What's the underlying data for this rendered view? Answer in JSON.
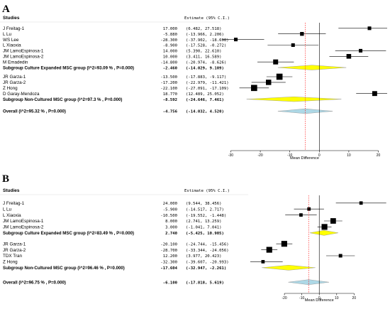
{
  "chart_data": [
    {
      "type": "forest",
      "panel": "A",
      "header": {
        "studies": "Studies",
        "estimate": "Estimate (95% C.I.)"
      },
      "xlabel": "Mean Difference",
      "xticks": [
        -30,
        -20,
        -10,
        0,
        10,
        20
      ],
      "xlim": [
        -33,
        23
      ],
      "null_line": 0,
      "overall_line": -4.756,
      "groups": [
        {
          "studies": [
            {
              "name": "J Freitag-1",
              "estimate": 17.0,
              "lower": 6.482,
              "upper": 27.518,
              "text": "17.000",
              "ci_text": "(6.482,  27.518)"
            },
            {
              "name": "L Lu",
              "estimate": -5.88,
              "lower": -13.966,
              "upper": 2.206,
              "text": "-5.880",
              "ci_text": "(-13.966,  2.206)"
            },
            {
              "name": "WS Lee",
              "estimate": -28.3,
              "lower": -37.902,
              "upper": -18.698,
              "text": "-28.300",
              "ci_text": "(-37.902, -18.698)"
            },
            {
              "name": "L Xiaoxia",
              "estimate": -8.9,
              "lower": -17.528,
              "upper": -0.272,
              "text": "-8.900",
              "ci_text": "(-17.528,  -0.272)"
            },
            {
              "name": "JM LamoEspinosa-1",
              "estimate": 14.0,
              "lower": 5.39,
              "upper": 22.61,
              "text": "14.000",
              "ci_text": "(5.390,  22.610)"
            },
            {
              "name": "JM LamoEspinosa-2",
              "estimate": 10.0,
              "lower": 3.411,
              "upper": 16.589,
              "text": "10.000",
              "ci_text": "(3.411,  16.589)"
            },
            {
              "name": "M Emadedin",
              "estimate": -14.8,
              "lower": -20.974,
              "upper": -8.626,
              "text": "-14.800",
              "ci_text": "(-20.974,  -8.626)"
            }
          ],
          "subgroup": {
            "label": "Subgroup Culture Expanded MSC group (I^2=93.09 % , P=0.000)",
            "estimate": -2.46,
            "lower": -14.029,
            "upper": 9.109,
            "text": "-2.460",
            "ci_text": "(-14.029,  9.109)"
          }
        },
        {
          "studies": [
            {
              "name": "JR Garza-1",
              "estimate": -13.5,
              "lower": -17.883,
              "upper": -9.117,
              "text": "-13.500",
              "ci_text": "(-17.883,  -9.117)"
            },
            {
              "name": "JR Garza-2",
              "estimate": -17.2,
              "lower": -22.979,
              "upper": -11.421,
              "text": "-17.200",
              "ci_text": "(-22.979, -11.421)"
            },
            {
              "name": "Z Hong",
              "estimate": -22.1,
              "lower": -27.091,
              "upper": -17.109,
              "text": "-22.100",
              "ci_text": "(-27.091, -17.109)"
            },
            {
              "name": "D Garay-Mendoza",
              "estimate": 18.77,
              "lower": 12.489,
              "upper": 25.052,
              "text": "18.770",
              "ci_text": "(12.489,  25.052)"
            }
          ],
          "subgroup": {
            "label": "Subgroup Non-Cultured MSC group (I^2=97.3 % , P=0.000)",
            "estimate": -8.592,
            "lower": -24.646,
            "upper": 7.461,
            "text": "-8.592",
            "ci_text": "(-24.646,  7.461)"
          }
        }
      ],
      "overall": {
        "label": "Overall (I^2=95.32 % , P=0.000)",
        "estimate": -4.756,
        "lower": -14.032,
        "upper": 4.52,
        "text": "-4.756",
        "ci_text": "(-14.032,  4.520)"
      }
    },
    {
      "type": "forest",
      "panel": "B",
      "header": {
        "studies": "Studies",
        "estimate": "Estimate (95% C.I.)"
      },
      "xlabel": "Mean Difference",
      "xticks": [
        -20,
        -10,
        0,
        10,
        20
      ],
      "xlim": [
        -40,
        39
      ],
      "null_line": 0,
      "overall_line": -6.1,
      "groups": [
        {
          "studies": [
            {
              "name": "J Freitag-1",
              "estimate": 24.0,
              "lower": 9.544,
              "upper": 38.456,
              "text": "24.000",
              "ci_text": "(9.544,  38.456)"
            },
            {
              "name": "L Lu",
              "estimate": -5.9,
              "lower": -14.517,
              "upper": 2.717,
              "text": "-5.900",
              "ci_text": "(-14.517,  2.717)"
            },
            {
              "name": "L Xiaoxia",
              "estimate": -10.5,
              "lower": -19.552,
              "upper": -1.448,
              "text": "-10.500",
              "ci_text": "(-19.552,  -1.448)"
            },
            {
              "name": "JM LamoEspinosa-1",
              "estimate": 8.0,
              "lower": 2.741,
              "upper": 13.259,
              "text": "8.000",
              "ci_text": "(2.741,  13.259)"
            },
            {
              "name": "JM LamoEspinosa-2",
              "estimate": 3.0,
              "lower": -1.041,
              "upper": 7.041,
              "text": "3.000",
              "ci_text": "(-1.041,  7.041)"
            }
          ],
          "subgroup": {
            "label": "Subgroup Culture Expanded MSC group (I^2=83.49 % , P=0.000)",
            "estimate": 2.74,
            "lower": -5.425,
            "upper": 10.905,
            "text": "2.740",
            "ci_text": "(-5.425,  10.905)"
          }
        },
        {
          "studies": [
            {
              "name": "JR Garza-1",
              "estimate": -20.1,
              "lower": -24.744,
              "upper": -15.456,
              "text": "-20.100",
              "ci_text": "(-24.744, -15.456)"
            },
            {
              "name": "JR Garza-2",
              "estimate": -28.7,
              "lower": -33.344,
              "upper": -24.056,
              "text": "-28.700",
              "ci_text": "(-33.344, -24.056)"
            },
            {
              "name": "TDX Tran",
              "estimate": 12.2,
              "lower": 3.977,
              "upper": 20.423,
              "text": "12.200",
              "ci_text": "(3.977,  20.423)"
            },
            {
              "name": "Z Hong",
              "estimate": -32.3,
              "lower": -39.607,
              "upper": -20.993,
              "text": "-32.300",
              "ci_text": "(-39.607, -20.993)"
            }
          ],
          "subgroup": {
            "label": "Subgroup Non-Cultured MSC group (I^2=96.46 % , P=0.000)",
            "estimate": -17.604,
            "lower": -32.947,
            "upper": -2.261,
            "text": "-17.604",
            "ci_text": "(-32.947,  -2.261)"
          }
        }
      ],
      "overall": {
        "label": "Overall (I^2=96.75 % , P=0.000)",
        "estimate": -6.1,
        "lower": -17.818,
        "upper": 5.619,
        "text": "-6.100",
        "ci_text": "(-17.818,  5.619)"
      }
    }
  ],
  "colors": {
    "subgroup_diamond": "#ffff00",
    "overall_diamond": "#add8e6",
    "null_line": "#000000",
    "overall_line": "#ff0000",
    "marker": "#000000"
  }
}
